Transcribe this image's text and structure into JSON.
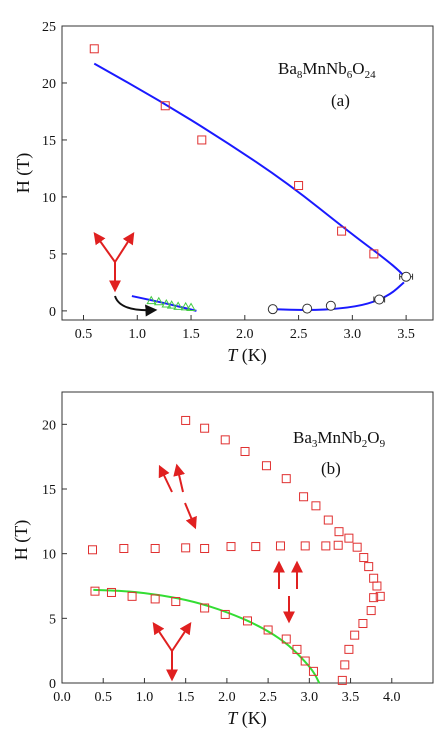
{
  "chart_data": [
    {
      "type": "scatter",
      "panel_label": "(a)",
      "compound": {
        "parts": [
          "Ba",
          "8",
          "MnNb",
          "6",
          "O",
          "24"
        ]
      },
      "xlabel": {
        "italic": "T",
        "rest": " (K)"
      },
      "ylabel": "H (T)",
      "xlim": [
        0.3,
        3.75
      ],
      "ylim": [
        -0.8,
        25
      ],
      "xticks": [
        0.5,
        1.0,
        1.5,
        2.0,
        2.5,
        3.0,
        3.5
      ],
      "xtick_labels": [
        "0.5",
        "1.0",
        "1.5",
        "2.0",
        "2.5",
        "3.0",
        "3.5"
      ],
      "yticks": [
        0,
        5,
        10,
        15,
        20,
        25
      ],
      "ytick_labels": [
        "0",
        "5",
        "10",
        "15",
        "20",
        "25"
      ],
      "colors": {
        "squares": "#e03030",
        "circles": "#333333",
        "triangles": "#44cc44",
        "fit_curves": "#1a1aff",
        "spins": "#e02020",
        "arrow": "#111111"
      },
      "series": [
        {
          "marker": "square-open",
          "x": [
            0.6,
            1.26,
            1.6,
            2.5,
            2.9,
            3.2
          ],
          "y": [
            23,
            18,
            15,
            11,
            7,
            5
          ]
        },
        {
          "marker": "circle-open",
          "x": [
            2.26,
            2.58,
            2.8,
            3.25,
            3.5
          ],
          "y": [
            0.15,
            0.2,
            0.45,
            1.0,
            3.0
          ],
          "xerr": [
            0,
            0,
            0,
            0.05,
            0.06
          ]
        },
        {
          "marker": "triangle-open",
          "x": [
            1.13,
            1.2,
            1.27,
            1.32,
            1.38,
            1.45,
            1.5
          ],
          "y": [
            0.9,
            0.8,
            0.6,
            0.5,
            0.4,
            0.35,
            0.3
          ]
        }
      ],
      "fits": [
        {
          "style": "line",
          "x": [
            0.6,
            1.2,
            1.8,
            2.4,
            3.0,
            3.3,
            3.45,
            3.5
          ],
          "y": [
            21.7,
            18.5,
            15.0,
            11.2,
            6.7,
            4.6,
            3.4,
            2.8
          ]
        },
        {
          "style": "line",
          "x": [
            0.95,
            1.2,
            1.4,
            1.55
          ],
          "y": [
            1.3,
            0.8,
            0.35,
            0.0
          ]
        },
        {
          "style": "line",
          "x": [
            2.25,
            2.6,
            2.9,
            3.15,
            3.35,
            3.48
          ],
          "y": [
            0.15,
            0.05,
            0.2,
            0.6,
            1.4,
            2.5
          ]
        }
      ]
    },
    {
      "type": "scatter",
      "panel_label": "(b)",
      "compound": {
        "parts": [
          "Ba",
          "3",
          "MnNb",
          "2",
          "O",
          "9"
        ]
      },
      "xlabel": {
        "italic": "T",
        "rest": " (K)"
      },
      "ylabel": "H (T)",
      "xlim": [
        0,
        4.5
      ],
      "ylim": [
        0,
        22.5
      ],
      "xticks": [
        0.0,
        0.5,
        1.0,
        1.5,
        2.0,
        2.5,
        3.0,
        3.5,
        4.0
      ],
      "xtick_labels": [
        "0.0",
        "0.5",
        "1.0",
        "1.5",
        "2.0",
        "2.5",
        "3.0",
        "3.5",
        "4.0"
      ],
      "yticks": [
        0,
        5,
        10,
        15,
        20
      ],
      "ytick_labels": [
        "0",
        "5",
        "10",
        "15",
        "20"
      ],
      "colors": {
        "squares": "#e03030",
        "fit_curve": "#33dd33",
        "spins": "#e02020"
      },
      "series": [
        {
          "marker": "square-open",
          "x": [
            1.5,
            1.73,
            1.98,
            2.22,
            2.48,
            2.72,
            2.93,
            3.08,
            3.23,
            3.36,
            3.48,
            3.58,
            3.66,
            3.72,
            3.78,
            3.82,
            3.86
          ],
          "y": [
            20.3,
            19.7,
            18.8,
            17.9,
            16.8,
            15.8,
            14.4,
            13.7,
            12.6,
            11.7,
            11.2,
            10.5,
            9.7,
            9.0,
            8.1,
            7.5,
            6.7
          ]
        },
        {
          "marker": "square-open",
          "x": [
            0.37,
            0.75,
            1.13,
            1.5,
            1.73,
            2.05,
            2.35,
            2.65,
            2.95,
            3.2,
            3.35
          ],
          "y": [
            10.3,
            10.4,
            10.4,
            10.45,
            10.4,
            10.55,
            10.55,
            10.6,
            10.6,
            10.6,
            10.65
          ]
        },
        {
          "marker": "square-open",
          "x": [
            0.4,
            0.6,
            0.85,
            1.13,
            1.38,
            1.73,
            1.98,
            2.25,
            2.5,
            2.72,
            2.85,
            2.95,
            3.05
          ],
          "y": [
            7.1,
            7.0,
            6.7,
            6.5,
            6.3,
            5.8,
            5.3,
            4.8,
            4.1,
            3.4,
            2.6,
            1.7,
            0.9
          ]
        },
        {
          "marker": "square-open",
          "x": [
            3.4,
            3.43,
            3.48,
            3.55,
            3.65,
            3.75,
            3.78
          ],
          "y": [
            0.2,
            1.4,
            2.6,
            3.7,
            4.6,
            5.6,
            6.6
          ]
        }
      ],
      "fits": [
        {
          "style": "line",
          "x": [
            0.38,
            0.8,
            1.2,
            1.6,
            2.0,
            2.4,
            2.7,
            2.9,
            3.05,
            3.12
          ],
          "y": [
            7.2,
            7.1,
            6.8,
            6.3,
            5.5,
            4.4,
            3.2,
            2.0,
            0.9,
            0.0
          ]
        }
      ]
    }
  ]
}
